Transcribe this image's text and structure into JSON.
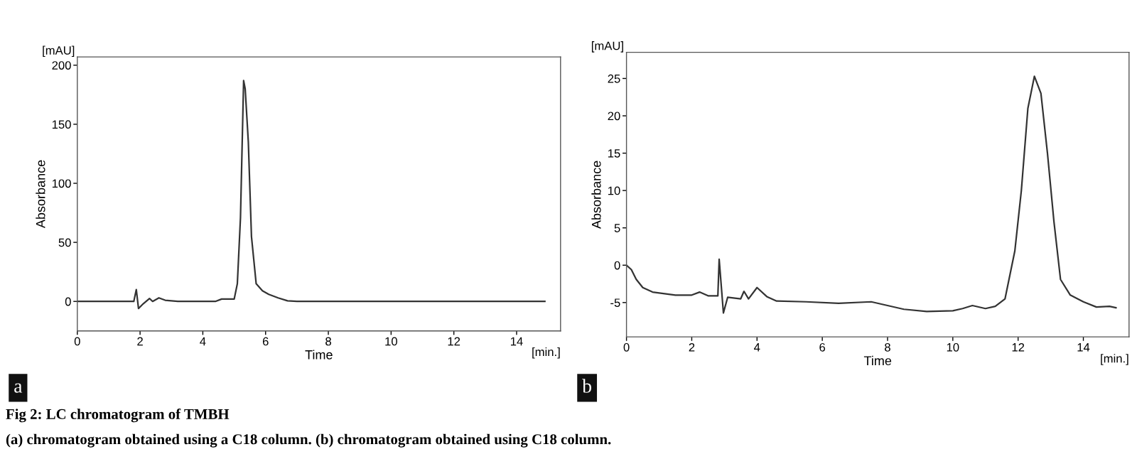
{
  "chart_data": [
    {
      "type": "line",
      "xlabel": "Time",
      "ylabel": "Absorbance",
      "xlim": [
        0,
        15.4
      ],
      "ylim": [
        -25,
        207
      ],
      "xticks": [
        0,
        2,
        4,
        6,
        8,
        10,
        12,
        14
      ],
      "yticks": [
        0,
        50,
        100,
        150,
        200
      ],
      "grid": false,
      "legend": false,
      "marker": "none",
      "line_style": "solid",
      "annotations": [
        "[mAU]",
        "[min.]",
        "a",
        "Fig 2: LC chromatogram of TMBH",
        "(a) chromatogram obtained using a C18 column. (b) chromatogram obtained using C18 column."
      ],
      "series": [
        {
          "color": "#333333",
          "x": [
            0,
            1.8,
            1.88,
            1.95,
            2.1,
            2.3,
            2.4,
            2.6,
            2.8,
            3.2,
            4.4,
            4.6,
            5.0,
            5.1,
            5.2,
            5.3,
            5.35,
            5.45,
            5.55,
            5.7,
            5.9,
            6.1,
            6.4,
            6.7,
            7,
            14.9
          ],
          "values": [
            0,
            0,
            10,
            -6,
            -2,
            2.5,
            0,
            3,
            1,
            0,
            0,
            2,
            2,
            15,
            71,
            187,
            180,
            135,
            55,
            15,
            9,
            6,
            3,
            0.5,
            0,
            0
          ]
        }
      ]
    },
    {
      "type": "line",
      "xlabel": "Time",
      "ylabel": "Absorbance",
      "xlim": [
        0,
        15.4
      ],
      "ylim": [
        -9.6,
        28.5
      ],
      "xticks": [
        0,
        2,
        4,
        6,
        8,
        10,
        12,
        14
      ],
      "yticks": [
        -5,
        0,
        5,
        10,
        15,
        20,
        25
      ],
      "grid": false,
      "legend": false,
      "marker": "none",
      "line_style": "solid",
      "annotations": [
        "[mAU]",
        "[min.]",
        "b"
      ],
      "series": [
        {
          "color": "#333333",
          "x": [
            0,
            0.15,
            0.3,
            0.5,
            0.8,
            1.5,
            2.0,
            2.24,
            2.5,
            2.8,
            2.84,
            2.97,
            3.1,
            3.5,
            3.6,
            3.74,
            4.0,
            4.3,
            4.6,
            5.5,
            6.5,
            7.5,
            8.0,
            8.5,
            9.2,
            10.0,
            10.3,
            10.6,
            11.0,
            11.3,
            11.6,
            11.9,
            12.1,
            12.3,
            12.5,
            12.7,
            12.9,
            13.1,
            13.3,
            13.6,
            14.0,
            14.4,
            14.8,
            15.0
          ],
          "values": [
            0,
            -0.6,
            -1.9,
            -3,
            -3.6,
            -4,
            -4,
            -3.6,
            -4.1,
            -4.1,
            0.8,
            -6.4,
            -4.3,
            -4.5,
            -3.5,
            -4.5,
            -3,
            -4.2,
            -4.8,
            -4.9,
            -5.1,
            -4.9,
            -5.4,
            -5.9,
            -6.2,
            -6.1,
            -5.8,
            -5.4,
            -5.8,
            -5.5,
            -4.5,
            1.9,
            10,
            21,
            25.3,
            23,
            15,
            5.8,
            -1.9,
            -4,
            -4.9,
            -5.6,
            -5.5,
            -5.7
          ]
        }
      ]
    }
  ]
}
